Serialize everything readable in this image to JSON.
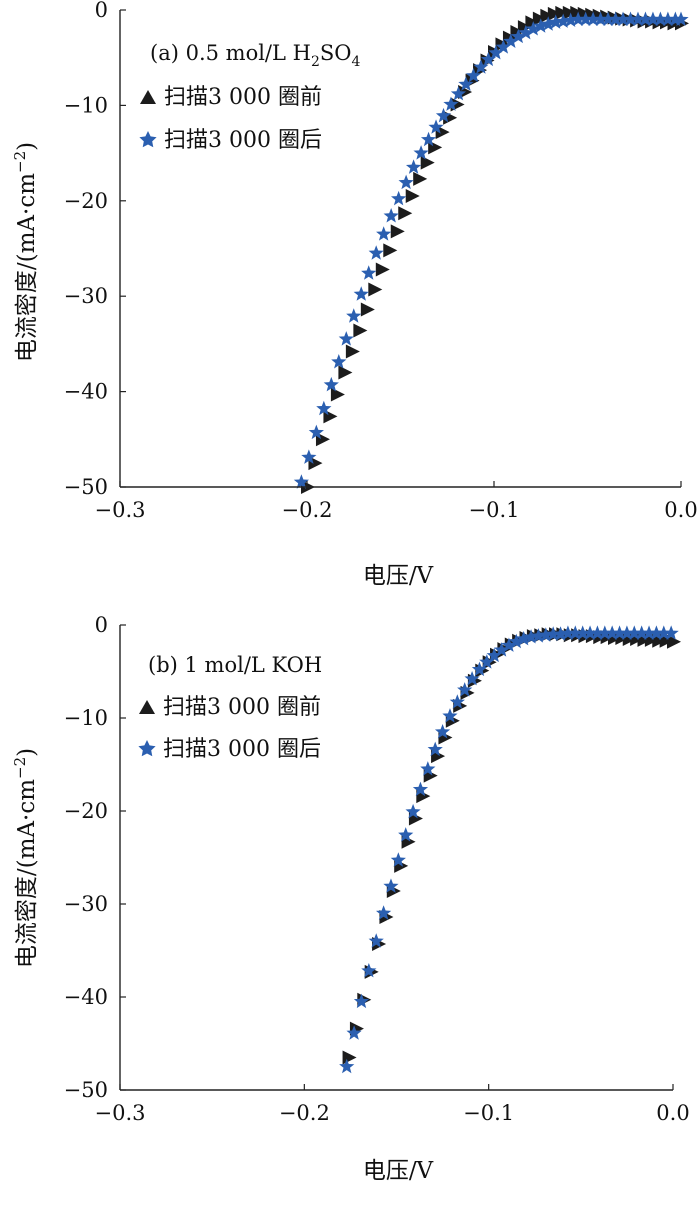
{
  "chart_data": [
    {
      "type": "scatter",
      "panel_label": "(a) 0.5 mol/L H",
      "panel_label_sub1": "2",
      "panel_label_mid": "SO",
      "panel_label_sub2": "4",
      "xlabel": "电压/V",
      "ylabel": "电流密度/(mA·cm",
      "ylabel_sup": "−2",
      "ylabel_close": ")",
      "xlim": [
        -0.3,
        0.0
      ],
      "ylim": [
        -50,
        0
      ],
      "xticks": [
        "−0.3",
        "−0.2",
        "−0.1",
        "0.0"
      ],
      "xtick_values": [
        -0.3,
        -0.2,
        -0.1,
        0.0
      ],
      "yticks": [
        "0",
        "−10",
        "−20",
        "−30",
        "−40",
        "−50"
      ],
      "ytick_values": [
        0,
        -10,
        -20,
        -30,
        -40,
        -50
      ],
      "series": [
        {
          "name": "扫描3 000 圈前",
          "marker": "triangle",
          "color": "#1c1c1c",
          "x": [
            -0.2,
            -0.196,
            -0.192,
            -0.188,
            -0.184,
            -0.18,
            -0.176,
            -0.172,
            -0.168,
            -0.164,
            -0.16,
            -0.156,
            -0.152,
            -0.148,
            -0.144,
            -0.14,
            -0.136,
            -0.132,
            -0.128,
            -0.124,
            -0.12,
            -0.116,
            -0.112,
            -0.108,
            -0.104,
            -0.1,
            -0.096,
            -0.092,
            -0.088,
            -0.084,
            -0.08,
            -0.076,
            -0.072,
            -0.068,
            -0.064,
            -0.06,
            -0.056,
            -0.052,
            -0.048,
            -0.044,
            -0.04,
            -0.036,
            -0.032,
            -0.028,
            -0.024,
            -0.02,
            -0.016,
            -0.012,
            -0.008,
            -0.004,
            0.0
          ],
          "y": [
            -50.0,
            -47.5,
            -45.0,
            -42.6,
            -40.3,
            -38.0,
            -35.8,
            -33.6,
            -31.4,
            -29.3,
            -27.2,
            -25.2,
            -23.2,
            -21.3,
            -19.5,
            -17.7,
            -16.0,
            -14.4,
            -12.8,
            -11.3,
            -9.9,
            -8.6,
            -7.4,
            -6.3,
            -5.3,
            -4.4,
            -3.6,
            -2.9,
            -2.3,
            -1.8,
            -1.3,
            -0.9,
            -0.6,
            -0.4,
            -0.3,
            -0.3,
            -0.3,
            -0.4,
            -0.5,
            -0.6,
            -0.7,
            -0.8,
            -0.9,
            -1.0,
            -1.1,
            -1.2,
            -1.2,
            -1.3,
            -1.3,
            -1.4,
            -1.4
          ]
        },
        {
          "name": "扫描3 000 圈后",
          "marker": "star",
          "color": "#2b5fb0",
          "x": [
            -0.203,
            -0.199,
            -0.195,
            -0.191,
            -0.187,
            -0.183,
            -0.179,
            -0.175,
            -0.171,
            -0.167,
            -0.163,
            -0.159,
            -0.155,
            -0.151,
            -0.147,
            -0.143,
            -0.139,
            -0.135,
            -0.131,
            -0.127,
            -0.123,
            -0.119,
            -0.115,
            -0.111,
            -0.107,
            -0.103,
            -0.099,
            -0.095,
            -0.091,
            -0.087,
            -0.083,
            -0.079,
            -0.075,
            -0.071,
            -0.067,
            -0.063,
            -0.059,
            -0.055,
            -0.051,
            -0.047,
            -0.043,
            -0.039,
            -0.035,
            -0.031,
            -0.027,
            -0.023,
            -0.019,
            -0.015,
            -0.011,
            -0.007,
            -0.003,
            0.0
          ],
          "y": [
            -49.5,
            -46.9,
            -44.3,
            -41.8,
            -39.3,
            -36.9,
            -34.5,
            -32.1,
            -29.8,
            -27.6,
            -25.5,
            -23.5,
            -21.6,
            -19.8,
            -18.1,
            -16.5,
            -15.0,
            -13.6,
            -12.3,
            -11.1,
            -9.9,
            -8.8,
            -7.8,
            -6.9,
            -6.0,
            -5.2,
            -4.5,
            -3.9,
            -3.3,
            -2.8,
            -2.4,
            -2.0,
            -1.7,
            -1.5,
            -1.3,
            -1.2,
            -1.1,
            -1.0,
            -1.0,
            -1.0,
            -1.0,
            -1.0,
            -1.0,
            -1.0,
            -1.0,
            -1.0,
            -1.0,
            -1.0,
            -1.0,
            -1.0,
            -1.0,
            -1.0
          ]
        }
      ]
    },
    {
      "type": "scatter",
      "panel_label": "(b) 1 mol/L KOH",
      "xlabel": "电压/V",
      "ylabel": "电流密度/(mA·cm",
      "ylabel_sup": "−2",
      "ylabel_close": ")",
      "xlim": [
        -0.3,
        0.0
      ],
      "ylim": [
        -50,
        0
      ],
      "xticks": [
        "−0.3",
        "−0.2",
        "−0.1",
        "0.0"
      ],
      "xtick_values": [
        -0.3,
        -0.2,
        -0.1,
        0.0
      ],
      "yticks": [
        "0",
        "−10",
        "−20",
        "−30",
        "−40",
        "−50"
      ],
      "ytick_values": [
        0,
        -10,
        -20,
        -30,
        -40,
        -50
      ],
      "series": [
        {
          "name": "扫描3 000 圈前",
          "marker": "triangle",
          "color": "#1c1c1c",
          "x": [
            -0.176,
            -0.172,
            -0.168,
            -0.164,
            -0.16,
            -0.156,
            -0.152,
            -0.148,
            -0.144,
            -0.14,
            -0.136,
            -0.132,
            -0.128,
            -0.124,
            -0.12,
            -0.116,
            -0.112,
            -0.108,
            -0.104,
            -0.1,
            -0.096,
            -0.092,
            -0.088,
            -0.084,
            -0.08,
            -0.076,
            -0.072,
            -0.068,
            -0.064,
            -0.06,
            -0.056,
            -0.052,
            -0.048,
            -0.044,
            -0.04,
            -0.036,
            -0.032,
            -0.028,
            -0.024,
            -0.02,
            -0.016,
            -0.012,
            -0.008,
            -0.004,
            0.0
          ],
          "y": [
            -46.5,
            -43.4,
            -40.3,
            -37.3,
            -34.3,
            -31.4,
            -28.6,
            -25.9,
            -23.3,
            -20.8,
            -18.4,
            -16.2,
            -14.1,
            -12.1,
            -10.3,
            -8.7,
            -7.3,
            -6.0,
            -4.9,
            -4.0,
            -3.2,
            -2.6,
            -2.1,
            -1.7,
            -1.4,
            -1.2,
            -1.1,
            -1.0,
            -1.0,
            -1.0,
            -1.1,
            -1.1,
            -1.2,
            -1.2,
            -1.3,
            -1.3,
            -1.4,
            -1.4,
            -1.5,
            -1.5,
            -1.6,
            -1.6,
            -1.7,
            -1.7,
            -1.8
          ]
        },
        {
          "name": "扫描3 000 圈后",
          "marker": "star",
          "color": "#2b5fb0",
          "x": [
            -0.177,
            -0.173,
            -0.169,
            -0.165,
            -0.161,
            -0.157,
            -0.153,
            -0.149,
            -0.145,
            -0.141,
            -0.137,
            -0.133,
            -0.129,
            -0.125,
            -0.121,
            -0.117,
            -0.113,
            -0.109,
            -0.105,
            -0.101,
            -0.097,
            -0.093,
            -0.089,
            -0.085,
            -0.081,
            -0.077,
            -0.073,
            -0.069,
            -0.065,
            -0.061,
            -0.057,
            -0.053,
            -0.049,
            -0.045,
            -0.041,
            -0.037,
            -0.033,
            -0.029,
            -0.025,
            -0.021,
            -0.017,
            -0.013,
            -0.009,
            -0.005,
            -0.001
          ],
          "y": [
            -47.5,
            -43.9,
            -40.5,
            -37.2,
            -34.0,
            -31.0,
            -28.1,
            -25.3,
            -22.6,
            -20.1,
            -17.7,
            -15.5,
            -13.4,
            -11.5,
            -9.8,
            -8.3,
            -7.0,
            -5.8,
            -4.8,
            -4.0,
            -3.3,
            -2.7,
            -2.2,
            -1.8,
            -1.5,
            -1.3,
            -1.2,
            -1.1,
            -1.0,
            -1.0,
            -0.9,
            -0.9,
            -0.9,
            -0.9,
            -0.9,
            -0.9,
            -0.9,
            -0.9,
            -0.9,
            -0.9,
            -0.9,
            -0.9,
            -0.9,
            -0.9,
            -0.9
          ]
        }
      ]
    }
  ]
}
